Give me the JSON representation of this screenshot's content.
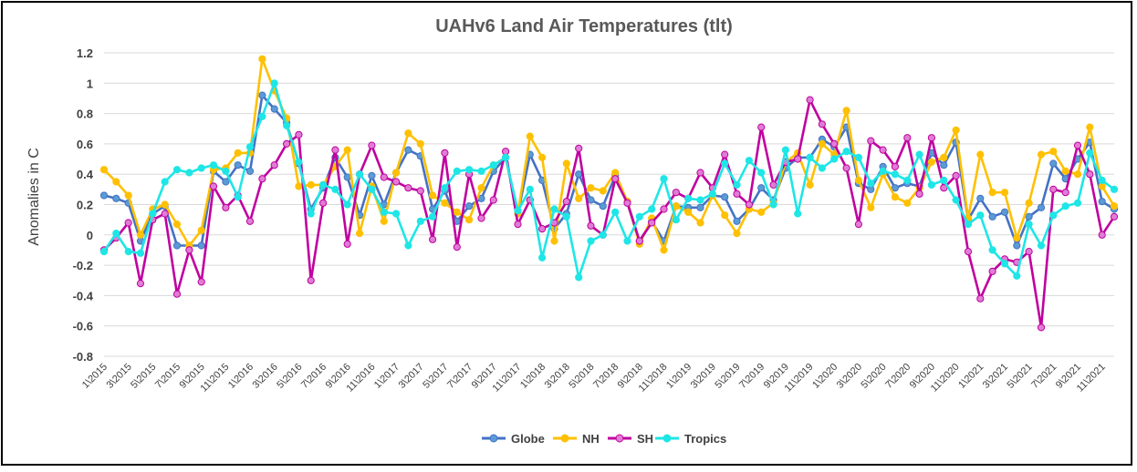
{
  "chart_data": {
    "type": "line",
    "title": "UAHv6 Land Air Temperatures (tlt)",
    "xlabel": "",
    "ylabel": "Anomalies in C",
    "ylim": [
      -0.8,
      1.2
    ],
    "yticks": [
      "1.2",
      "1",
      "0.8",
      "0.6",
      "0.4",
      "0.2",
      "0",
      "-0.2",
      "-0.4",
      "-0.6",
      "-0.8"
    ],
    "ytick_values": [
      1.2,
      1.0,
      0.8,
      0.6,
      0.4,
      0.2,
      0,
      -0.2,
      -0.4,
      -0.6,
      -0.8
    ],
    "grid": true,
    "legend_position": "bottom",
    "x_count": 84,
    "x_tick_labels": [
      "1\\2015",
      "3\\2015",
      "5\\2015",
      "7\\2015",
      "9\\2015",
      "11\\2015",
      "1\\2016",
      "3\\2016",
      "5\\2016",
      "7\\2016",
      "9\\2016",
      "11\\2016",
      "1\\2017",
      "3\\2017",
      "5\\2017",
      "7\\2017",
      "9\\2017",
      "11\\2017",
      "1\\2018",
      "3\\2018",
      "5\\2018",
      "7\\2018",
      "9\\2018",
      "11\\2018",
      "1\\2019",
      "3\\2019",
      "5\\2019",
      "7\\2019",
      "9\\2019",
      "11\\2019",
      "1\\2020",
      "3\\2020",
      "5\\2020",
      "7\\2020",
      "9\\2020",
      "11\\2020",
      "1\\2021",
      "3\\2021",
      "5\\2021",
      "7\\2021",
      "9\\2021",
      "11\\2021"
    ],
    "series": [
      {
        "name": "Globe",
        "color": "#4472C4",
        "marker": "#5B9BD5",
        "values": [
          0.26,
          0.24,
          0.21,
          -0.04,
          0.14,
          0.19,
          -0.07,
          -0.07,
          -0.07,
          0.42,
          0.35,
          0.46,
          0.42,
          0.92,
          0.83,
          0.74,
          0.47,
          0.17,
          0.31,
          0.51,
          0.38,
          0.13,
          0.39,
          0.2,
          0.41,
          0.56,
          0.52,
          0.17,
          0.29,
          0.09,
          0.19,
          0.24,
          0.42,
          0.51,
          0.14,
          0.53,
          0.36,
          0.04,
          0.14,
          0.4,
          0.23,
          0.19,
          0.39,
          0.22,
          -0.04,
          0.09,
          -0.04,
          0.19,
          0.18,
          0.18,
          0.26,
          0.25,
          0.09,
          0.17,
          0.31,
          0.23,
          0.44,
          0.51,
          0.51,
          0.63,
          0.58,
          0.71,
          0.34,
          0.3,
          0.45,
          0.31,
          0.34,
          0.32,
          0.54,
          0.46,
          0.61,
          0.1,
          0.24,
          0.12,
          0.15,
          -0.07,
          0.12,
          0.18,
          0.47,
          0.37,
          0.5,
          0.61,
          0.22,
          0.17
        ]
      },
      {
        "name": "NH",
        "color": "#FFC000",
        "marker": "#FFC000",
        "values": [
          0.43,
          0.35,
          0.26,
          0.0,
          0.17,
          0.2,
          0.07,
          -0.07,
          0.03,
          0.43,
          0.44,
          0.54,
          0.54,
          1.16,
          0.95,
          0.77,
          0.32,
          0.33,
          0.33,
          0.45,
          0.56,
          0.01,
          0.32,
          0.09,
          0.41,
          0.67,
          0.6,
          0.26,
          0.21,
          0.15,
          0.1,
          0.31,
          0.46,
          0.51,
          0.14,
          0.65,
          0.51,
          -0.04,
          0.47,
          0.24,
          0.31,
          0.29,
          0.41,
          0.22,
          -0.06,
          0.11,
          -0.1,
          0.19,
          0.15,
          0.08,
          0.26,
          0.13,
          0.01,
          0.17,
          0.15,
          0.21,
          0.48,
          0.54,
          0.33,
          0.6,
          0.53,
          0.82,
          0.36,
          0.18,
          0.4,
          0.25,
          0.21,
          0.31,
          0.48,
          0.51,
          0.69,
          0.11,
          0.53,
          0.28,
          0.28,
          -0.02,
          0.21,
          0.53,
          0.55,
          0.42,
          0.4,
          0.71,
          0.32,
          0.19
        ]
      },
      {
        "name": "SH",
        "color": "#C000A0",
        "marker": "#E07CD4",
        "values": [
          -0.1,
          -0.02,
          0.08,
          -0.32,
          0.1,
          0.14,
          -0.39,
          -0.1,
          -0.31,
          0.32,
          0.18,
          0.26,
          0.09,
          0.37,
          0.46,
          0.6,
          0.66,
          -0.3,
          0.21,
          0.56,
          -0.06,
          0.4,
          0.59,
          0.38,
          0.35,
          0.31,
          0.29,
          -0.03,
          0.54,
          -0.08,
          0.4,
          0.11,
          0.23,
          0.55,
          0.07,
          0.23,
          0.04,
          0.08,
          0.22,
          0.57,
          0.06,
          0.0,
          0.37,
          0.21,
          -0.04,
          0.08,
          0.17,
          0.28,
          0.24,
          0.41,
          0.31,
          0.53,
          0.27,
          0.2,
          0.71,
          0.33,
          0.48,
          0.5,
          0.89,
          0.73,
          0.6,
          0.44,
          0.07,
          0.62,
          0.56,
          0.45,
          0.64,
          0.27,
          0.64,
          0.31,
          0.39,
          -0.11,
          -0.42,
          -0.24,
          -0.16,
          -0.18,
          -0.11,
          -0.61,
          0.3,
          0.28,
          0.59,
          0.4,
          0.0,
          0.12
        ]
      },
      {
        "name": "Tropics",
        "color": "#1EE6E6",
        "marker": "#1EE6E6",
        "values": [
          -0.11,
          0.01,
          -0.11,
          -0.12,
          0.14,
          0.35,
          0.43,
          0.41,
          0.44,
          0.46,
          0.42,
          0.25,
          0.58,
          0.78,
          1.0,
          0.72,
          0.48,
          0.14,
          0.33,
          0.3,
          0.2,
          0.4,
          0.3,
          0.15,
          0.14,
          -0.07,
          0.09,
          0.12,
          0.31,
          0.42,
          0.43,
          0.42,
          0.46,
          0.51,
          0.16,
          0.3,
          -0.15,
          0.17,
          0.12,
          -0.28,
          -0.04,
          0.0,
          0.15,
          -0.04,
          0.12,
          0.17,
          0.37,
          0.1,
          0.24,
          0.23,
          0.27,
          0.47,
          0.33,
          0.49,
          0.41,
          0.2,
          0.56,
          0.14,
          0.51,
          0.44,
          0.5,
          0.55,
          0.51,
          0.34,
          0.42,
          0.4,
          0.36,
          0.53,
          0.33,
          0.36,
          0.23,
          0.07,
          0.13,
          -0.1,
          -0.19,
          -0.27,
          0.07,
          -0.07,
          0.13,
          0.19,
          0.21,
          0.54,
          0.36,
          0.3
        ]
      }
    ]
  }
}
